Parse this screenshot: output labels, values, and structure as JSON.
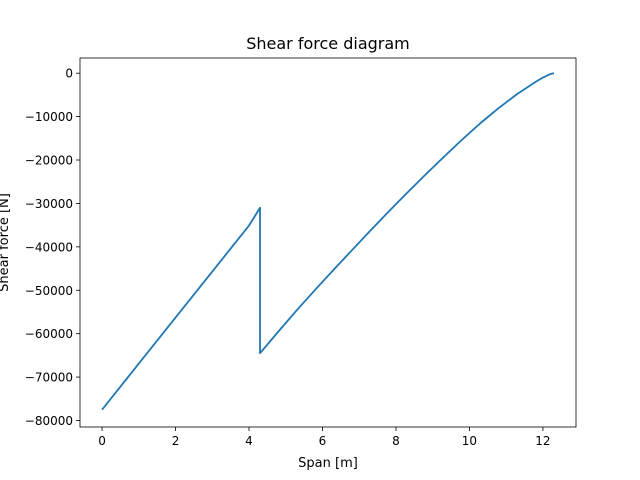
{
  "chart_data": {
    "type": "line",
    "title": "Shear force diagram",
    "xlabel": "Span [m]",
    "ylabel": "Shear force [N]",
    "xlim": [
      -0.6,
      12.9
    ],
    "ylim": [
      -81500,
      3500
    ],
    "xticks": [
      0,
      2,
      4,
      6,
      8,
      10,
      12
    ],
    "xtick_labels": [
      "0",
      "2",
      "4",
      "6",
      "8",
      "10",
      "12"
    ],
    "yticks": [
      -80000,
      -70000,
      -60000,
      -50000,
      -40000,
      -30000,
      -20000,
      -10000,
      0
    ],
    "ytick_labels": [
      "−80000",
      "−70000",
      "−60000",
      "−50000",
      "−40000",
      "−30000",
      "−20000",
      "−10000",
      "0"
    ],
    "grid": false,
    "series": [
      {
        "color": "#1f77b4",
        "x": [
          0,
          0.5,
          1.0,
          1.5,
          2.0,
          2.5,
          3.0,
          3.5,
          4.0,
          4.3,
          4.3,
          4.8,
          5.3,
          5.8,
          6.3,
          6.8,
          7.3,
          7.8,
          8.3,
          8.8,
          9.3,
          9.8,
          10.3,
          10.8,
          11.3,
          11.8,
          12.0,
          12.2,
          12.3
        ],
        "y": [
          -77500,
          -72200,
          -66900,
          -61600,
          -56300,
          -51000,
          -45700,
          -40400,
          -35100,
          -31000,
          -64500,
          -59500,
          -54600,
          -49900,
          -45300,
          -40800,
          -36300,
          -31900,
          -27600,
          -23400,
          -19300,
          -15300,
          -11500,
          -8000,
          -4800,
          -2000,
          -1000,
          -200,
          0
        ]
      }
    ]
  }
}
